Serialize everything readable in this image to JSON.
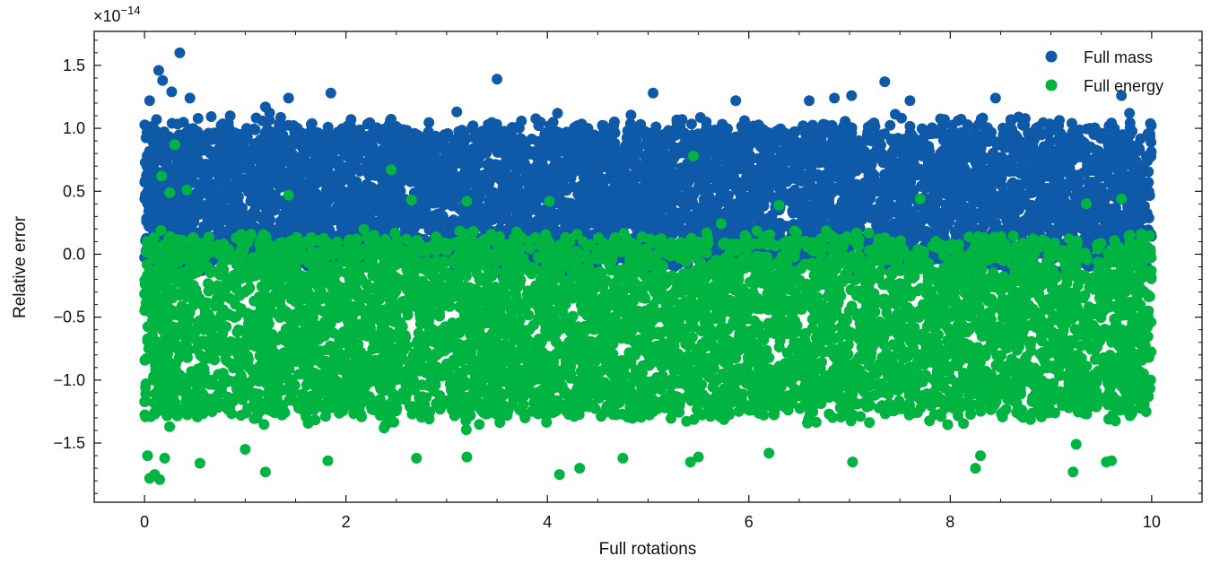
{
  "chart_data": {
    "type": "scatter",
    "title": "",
    "xlabel": "Full rotations",
    "ylabel": "Relative error",
    "offset_text": "×10",
    "offset_exponent": "−14",
    "xlim": [
      -0.5,
      10.5
    ],
    "ylim": [
      -1.97,
      1.77
    ],
    "x_ticks": [
      0,
      2,
      4,
      6,
      8,
      10
    ],
    "x_tick_labels": [
      "0",
      "2",
      "4",
      "6",
      "8",
      "10"
    ],
    "y_ticks": [
      -1.5,
      -1.0,
      -0.5,
      0.0,
      0.5,
      1.0,
      1.5
    ],
    "y_tick_labels": [
      "−1.5",
      "−1.0",
      "−0.5",
      "0.0",
      "0.5",
      "1.0",
      "1.5"
    ],
    "grid": false,
    "legend_position": "top-right",
    "legend": [
      "Full mass",
      "Full energy"
    ],
    "series": [
      {
        "name": "Full mass",
        "color": "#0f5aa8",
        "x_range": [
          0,
          10
        ],
        "core_range": [
          0.0,
          0.95
        ],
        "outliers": [
          [
            0.35,
            1.6
          ],
          [
            0.14,
            1.46
          ],
          [
            0.18,
            1.38
          ],
          [
            0.27,
            1.29
          ],
          [
            0.05,
            1.22
          ],
          [
            0.45,
            1.24
          ],
          [
            1.43,
            1.24
          ],
          [
            1.85,
            1.28
          ],
          [
            3.5,
            1.39
          ],
          [
            5.05,
            1.28
          ],
          [
            5.87,
            1.22
          ],
          [
            6.6,
            1.22
          ],
          [
            6.85,
            1.24
          ],
          [
            7.02,
            1.26
          ],
          [
            7.35,
            1.37
          ],
          [
            7.6,
            1.22
          ],
          [
            8.45,
            1.24
          ],
          [
            9.7,
            1.26
          ],
          [
            9.78,
            1.12
          ],
          [
            0.85,
            1.1
          ],
          [
            1.2,
            1.17
          ],
          [
            3.1,
            1.13
          ],
          [
            4.1,
            1.12
          ],
          [
            2.05,
            1.07
          ]
        ]
      },
      {
        "name": "Full energy",
        "color": "#00b441",
        "x_range": [
          0,
          10
        ],
        "core_range": [
          -1.2,
          0.05
        ],
        "outliers": [
          [
            0.3,
            0.87
          ],
          [
            0.17,
            0.62
          ],
          [
            0.42,
            0.51
          ],
          [
            0.25,
            0.49
          ],
          [
            1.43,
            0.47
          ],
          [
            2.45,
            0.67
          ],
          [
            5.45,
            0.78
          ],
          [
            3.2,
            0.42
          ],
          [
            4.02,
            0.42
          ],
          [
            2.65,
            0.43
          ],
          [
            7.7,
            0.44
          ],
          [
            6.3,
            0.39
          ],
          [
            9.35,
            0.4
          ],
          [
            9.7,
            0.44
          ],
          [
            0.03,
            -1.6
          ],
          [
            0.05,
            -1.78
          ],
          [
            0.1,
            -1.75
          ],
          [
            0.15,
            -1.79
          ],
          [
            0.2,
            -1.62
          ],
          [
            1.2,
            -1.73
          ],
          [
            0.55,
            -1.66
          ],
          [
            1.82,
            -1.64
          ],
          [
            2.7,
            -1.62
          ],
          [
            3.2,
            -1.61
          ],
          [
            4.12,
            -1.75
          ],
          [
            4.32,
            -1.7
          ],
          [
            4.75,
            -1.62
          ],
          [
            5.5,
            -1.61
          ],
          [
            5.42,
            -1.65
          ],
          [
            6.2,
            -1.58
          ],
          [
            7.03,
            -1.65
          ],
          [
            8.25,
            -1.7
          ],
          [
            8.3,
            -1.6
          ],
          [
            9.22,
            -1.73
          ],
          [
            9.55,
            -1.65
          ],
          [
            9.6,
            -1.64
          ],
          [
            9.25,
            -1.51
          ],
          [
            1.0,
            -1.55
          ]
        ]
      }
    ]
  }
}
